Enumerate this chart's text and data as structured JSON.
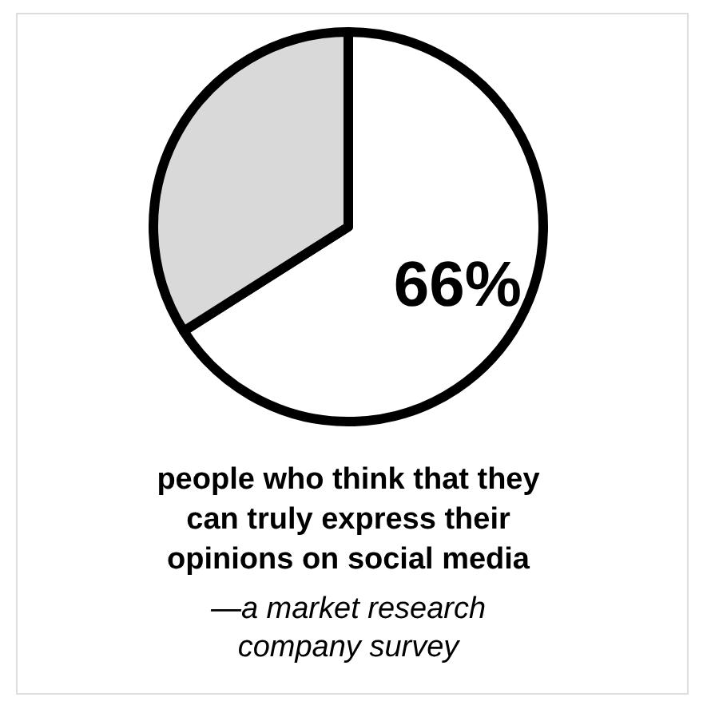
{
  "chart_data": {
    "type": "pie",
    "categories": [
      null,
      null
    ],
    "values": [
      66,
      34
    ],
    "colors": [
      "#ffffff",
      "#d9d9d9"
    ],
    "value_labels": [
      "66%",
      null
    ],
    "title": "people who think that they can truly express their opinions on social media",
    "annotations": [
      "—a market research company survey"
    ]
  }
}
